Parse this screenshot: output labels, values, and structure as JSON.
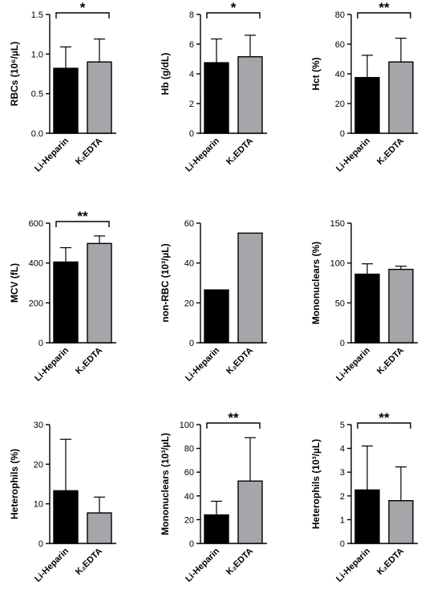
{
  "colors": {
    "li_heparin": "#000000",
    "k2edta": "#a6a6aa"
  },
  "chart_data": [
    {
      "type": "bar",
      "ylabel": "RBCs (10⁶/µL)",
      "categories": [
        "Li-Heparin",
        "K₂EDTA"
      ],
      "values": [
        0.82,
        0.9
      ],
      "errors": [
        0.27,
        0.29
      ],
      "ylim": [
        0,
        1.5
      ],
      "yticks": [
        "0.0",
        "0.5",
        "1.0",
        "1.5"
      ],
      "significance": "*"
    },
    {
      "type": "bar",
      "ylabel": "Hb (g/dL)",
      "categories": [
        "Li-Heparin",
        "K₂EDTA"
      ],
      "values": [
        4.75,
        5.15
      ],
      "errors": [
        1.6,
        1.45
      ],
      "ylim": [
        0,
        8
      ],
      "yticks": [
        "0",
        "2",
        "4",
        "6",
        "8"
      ],
      "significance": "*"
    },
    {
      "type": "bar",
      "ylabel": "Hct (%)",
      "categories": [
        "Li-Heparin",
        "K₂EDTA"
      ],
      "values": [
        37.5,
        48
      ],
      "errors": [
        15,
        16
      ],
      "ylim": [
        0,
        80
      ],
      "yticks": [
        "0",
        "20",
        "40",
        "60",
        "80"
      ],
      "significance": "**"
    },
    {
      "type": "bar",
      "ylabel": "MCV (fL)",
      "categories": [
        "Li-Heparin",
        "K₂EDTA"
      ],
      "values": [
        405,
        498
      ],
      "errors": [
        72,
        38
      ],
      "ylim": [
        0,
        600
      ],
      "yticks": [
        "0",
        "200",
        "400",
        "600"
      ],
      "significance": "**"
    },
    {
      "type": "bar",
      "ylabel": "non-RBC (10³/µL)",
      "categories": [
        "Li-Heparin",
        "K₂EDTA"
      ],
      "values": [
        26.5,
        55
      ],
      "errors": [
        0,
        0
      ],
      "ylim": [
        0,
        60
      ],
      "yticks": [
        "0",
        "20",
        "40",
        "60"
      ],
      "significance": ""
    },
    {
      "type": "bar",
      "ylabel": "Mononuclears (%)",
      "categories": [
        "Li-Heparin",
        "K₂EDTA"
      ],
      "values": [
        86,
        92
      ],
      "errors": [
        13,
        4
      ],
      "ylim": [
        0,
        150
      ],
      "yticks": [
        "0",
        "50",
        "100",
        "150"
      ],
      "significance": ""
    },
    {
      "type": "bar",
      "ylabel": "Heterophils (%)",
      "categories": [
        "Li-Heparin",
        "K₂EDTA"
      ],
      "values": [
        13.3,
        7.7
      ],
      "errors": [
        13,
        4
      ],
      "ylim": [
        0,
        30
      ],
      "yticks": [
        "0",
        "10",
        "20",
        "30"
      ],
      "significance": ""
    },
    {
      "type": "bar",
      "ylabel": "Mononuclears (10³/µL)",
      "categories": [
        "Li-Heparin",
        "K₂EDTA"
      ],
      "values": [
        24,
        52.5
      ],
      "errors": [
        11.5,
        36.5
      ],
      "ylim": [
        0,
        100
      ],
      "yticks": [
        "0",
        "20",
        "40",
        "60",
        "80",
        "100"
      ],
      "significance": "**"
    },
    {
      "type": "bar",
      "ylabel": "Heterophils (10³/µL)",
      "categories": [
        "Li-Heparin",
        "K₂EDTA"
      ],
      "values": [
        2.25,
        1.8
      ],
      "errors": [
        1.85,
        1.42
      ],
      "ylim": [
        0,
        5
      ],
      "yticks": [
        "0",
        "1",
        "2",
        "3",
        "4",
        "5"
      ],
      "significance": "**"
    }
  ]
}
